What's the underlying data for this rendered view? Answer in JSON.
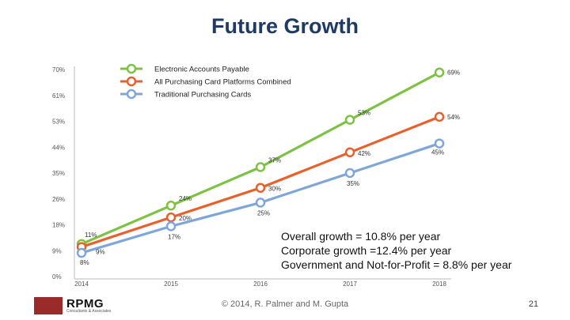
{
  "slide": {
    "title": "Future Growth",
    "notes": [
      "Overall growth = 10.8% per year",
      "Corporate growth =12.4% per year",
      "Government and Not-for-Profit = 8.8% per year"
    ],
    "footer": "© 2014, R. Palmer and M. Gupta",
    "page_number": "21",
    "logo": {
      "name": "RPMG",
      "subtitle": "Consultants & Associates"
    }
  },
  "colors": {
    "title": "#1f3b63",
    "electronic": "#7dc242",
    "purchasing": "#e8612c",
    "traditional": "#7fa6d8",
    "axis": "#bbbbbb",
    "tick": "#555555",
    "logo": "#9b2b2b"
  },
  "chart_data": {
    "type": "line",
    "title": "",
    "xlabel": "",
    "ylabel": "",
    "categories": [
      "2014",
      "2015",
      "2016",
      "2017",
      "2018"
    ],
    "y_ticks": [
      "0%",
      "9%",
      "18%",
      "26%",
      "35%",
      "44%",
      "53%",
      "61%",
      "70%"
    ],
    "ylim": [
      0,
      70
    ],
    "legend_position": "top-left",
    "series": [
      {
        "name": "Electronic Accounts Payable",
        "color": "#7dc242",
        "values": [
          11,
          24,
          37,
          53,
          69
        ],
        "labels": [
          "11%",
          "24%",
          "37%",
          "53%",
          "69%"
        ],
        "label_pos": "above"
      },
      {
        "name": "All Purchasing Card Platforms Combined",
        "color": "#e8612c",
        "values": [
          10,
          20,
          30,
          42,
          54
        ],
        "labels": [
          "",
          "20%",
          "30%",
          "42%",
          "54%"
        ],
        "label_pos": "right"
      },
      {
        "name": "Traditional Purchasing Cards",
        "color": "#7fa6d8",
        "values": [
          8,
          17,
          25,
          35,
          45
        ],
        "labels": [
          "8%",
          "17%",
          "25%",
          "35%",
          "45%"
        ],
        "label_pos": "below"
      }
    ],
    "extra_labels": [
      {
        "text": "9%",
        "category": 0,
        "value": 9
      }
    ]
  }
}
